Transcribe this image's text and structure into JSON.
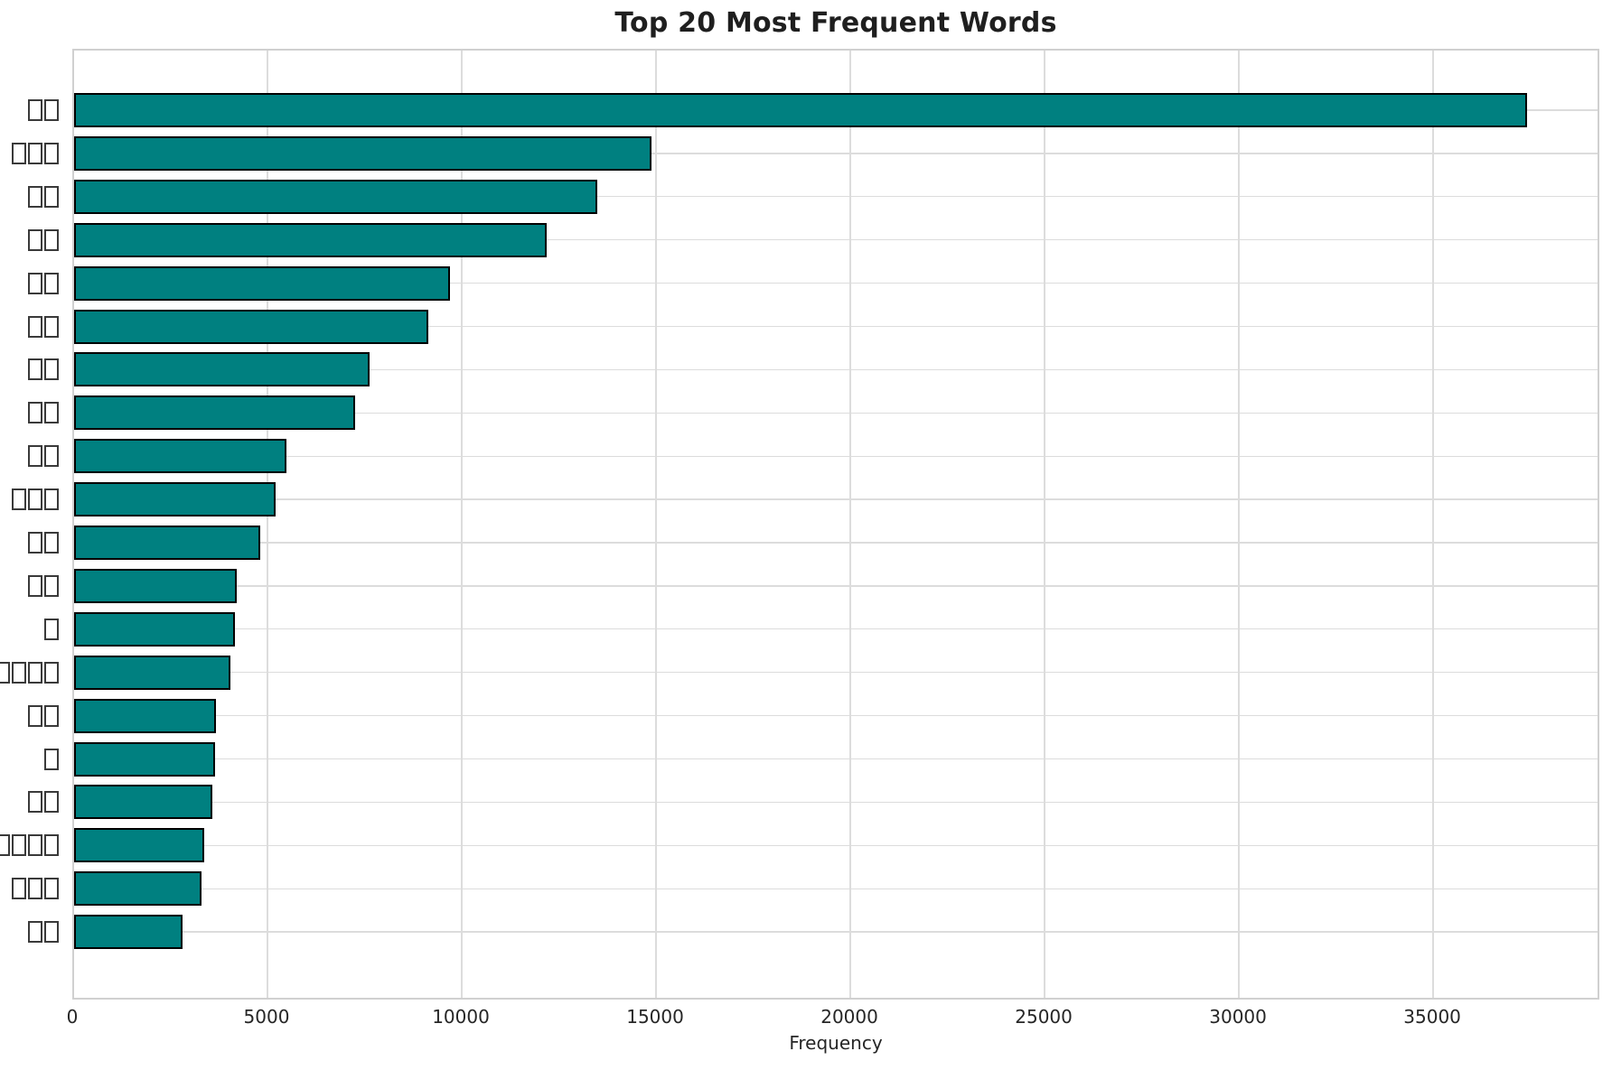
{
  "chart_data": {
    "type": "bar",
    "orientation": "horizontal",
    "title": "Top 20 Most Frequent Words",
    "xlabel": "Frequency",
    "ylabel": "",
    "note": "y-axis category labels are non-Latin (CJK) words displayed as missing-glyph tofu boxes; box counts per label preserved",
    "categories": [
      "□□",
      "□□□",
      "□□",
      "□□",
      "□□",
      "□□",
      "□□",
      "□□",
      "□□",
      "□□□",
      "□□",
      "□□",
      "□",
      "□□□□",
      "□□",
      "□",
      "□□",
      "□□□□",
      "□□□",
      "□□"
    ],
    "values": [
      37400,
      14850,
      13470,
      12170,
      9670,
      9120,
      7610,
      7230,
      5470,
      5190,
      4790,
      4190,
      4140,
      4020,
      3650,
      3630,
      3560,
      3350,
      3280,
      2790
    ],
    "xticks": [
      0,
      5000,
      10000,
      15000,
      20000,
      25000,
      30000,
      35000
    ],
    "xlim": [
      0,
      39300
    ],
    "grid": true,
    "legend": null,
    "bar_color": "#008080",
    "bar_edge_color": "#000000",
    "grid_color": "#dcdcdc",
    "spine_color": "#d0d0d0",
    "text_color": "#262626"
  }
}
